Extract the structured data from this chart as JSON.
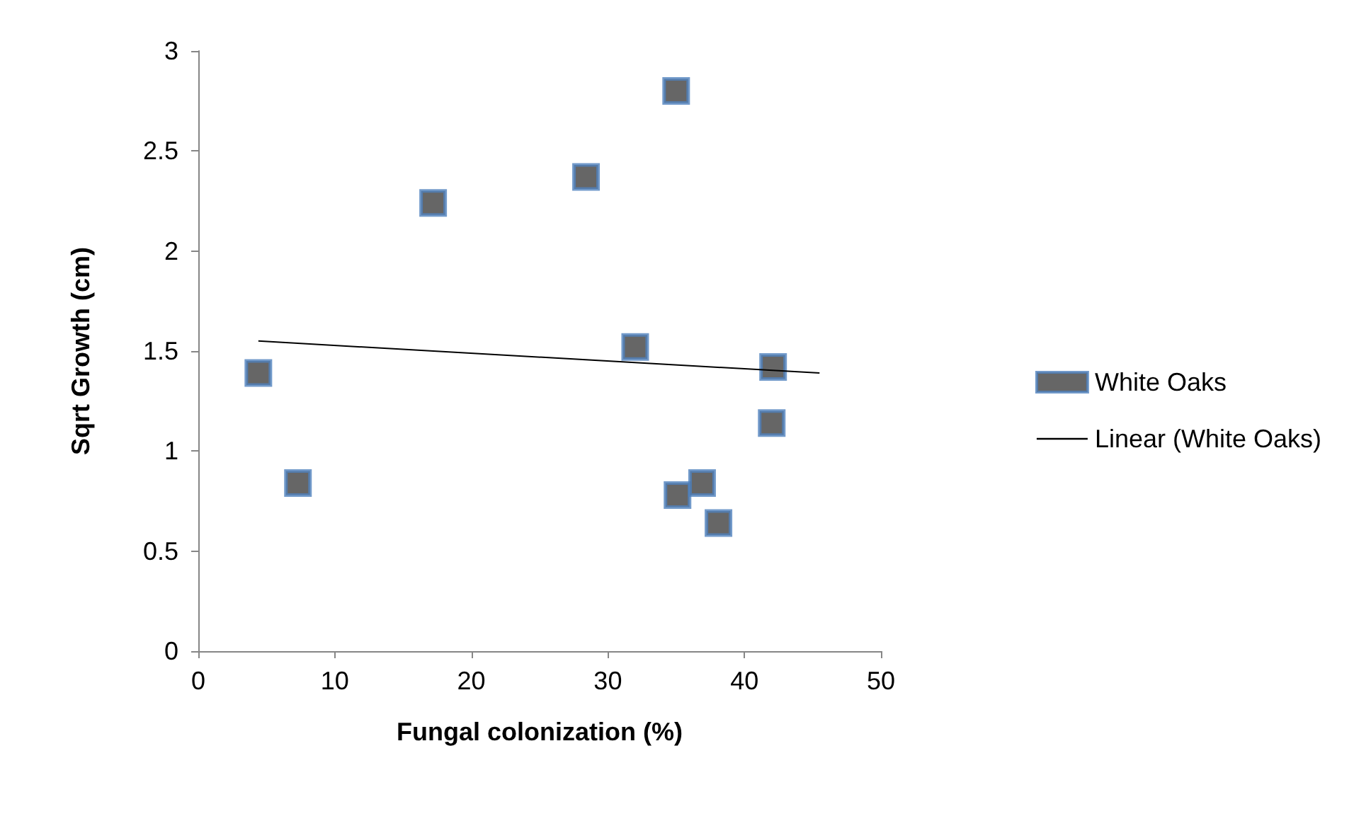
{
  "chart_data": {
    "type": "scatter",
    "xlabel": "Fungal colonization (%)",
    "ylabel": "Sqrt Growth (cm)",
    "xlim": [
      0,
      50
    ],
    "xticks": [
      0,
      10,
      20,
      30,
      40,
      50
    ],
    "ylim": [
      0,
      3
    ],
    "yticks": [
      0,
      0.5,
      1,
      1.5,
      2,
      2.5,
      3
    ],
    "grid": false,
    "legend": "right",
    "series": [
      {
        "name": "White Oaks",
        "marker": "square",
        "color": "#404040",
        "x": [
          4.4,
          7.3,
          17.2,
          28.4,
          32.0,
          35.0,
          35.1,
          36.9,
          38.1,
          42.0,
          42.1
        ],
        "values": [
          1.39,
          0.84,
          2.24,
          2.37,
          1.52,
          2.8,
          0.78,
          0.84,
          0.64,
          1.14,
          1.42
        ]
      },
      {
        "name": "Linear (White Oaks)",
        "type": "line",
        "marker": "none",
        "color": "#000000",
        "x": [
          4.4,
          45.5
        ],
        "values": [
          1.55,
          1.39
        ]
      }
    ]
  }
}
